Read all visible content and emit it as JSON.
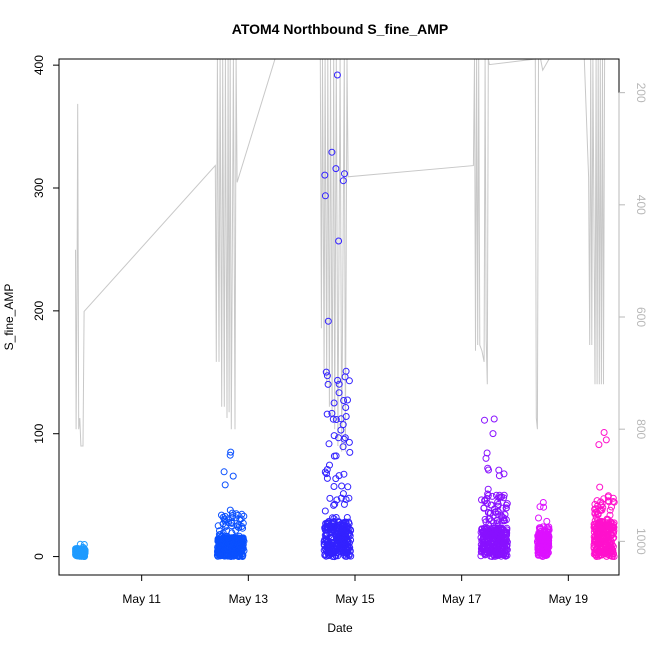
{
  "chart_data": {
    "type": "scatter",
    "title": "ATOM4 Northbound S_fine_AMP",
    "xlabel": "Date",
    "ylabel": "S_fine_AMP",
    "x_ticks": [
      "May 11",
      "May 13",
      "May 15",
      "May 17",
      "May 19"
    ],
    "x_tick_days": [
      11,
      13,
      15,
      17,
      19
    ],
    "xlim_days": [
      9.45,
      19.95
    ],
    "ylim": [
      -15,
      405
    ],
    "y_ticks": [
      0,
      100,
      200,
      300,
      400
    ],
    "y2_ticks": [
      200,
      400,
      600,
      800,
      1000
    ],
    "y2lim_reversed": [
      1060,
      140
    ],
    "grid": false,
    "legend": "none",
    "right_axis_color": "#b8b8b8",
    "line_color": "#c8c8c8",
    "clusters": [
      {
        "day_start": 9.76,
        "day_end": 9.94,
        "color": "#1e9bff",
        "y_max": 10,
        "y_typical": 5
      },
      {
        "day_start": 12.42,
        "day_end": 12.92,
        "color": "#0a50ff",
        "y_max": 85,
        "y_typical": 12
      },
      {
        "day_start": 14.42,
        "day_end": 14.92,
        "color": "#3322ff",
        "y_max": 392,
        "y_typical": 22
      },
      {
        "day_start": 17.36,
        "day_end": 17.86,
        "color": "#8811ff",
        "y_max": 112,
        "y_typical": 18
      },
      {
        "day_start": 18.42,
        "day_end": 18.64,
        "color": "#dd11ff",
        "y_max": 44,
        "y_typical": 14
      },
      {
        "day_start": 19.48,
        "day_end": 19.86,
        "color": "#ff11cc",
        "y_max": 101,
        "y_typical": 22
      }
    ],
    "secondary_line": [
      [
        9.76,
        480
      ],
      [
        9.77,
        800
      ],
      [
        9.79,
        520
      ],
      [
        9.8,
        220
      ],
      [
        9.82,
        800
      ],
      [
        9.84,
        780
      ],
      [
        9.86,
        830
      ],
      [
        9.9,
        830
      ],
      [
        9.92,
        590
      ],
      [
        12.38,
        330
      ],
      [
        12.4,
        680
      ],
      [
        12.42,
        140
      ],
      [
        12.45,
        680
      ],
      [
        12.47,
        140
      ],
      [
        12.5,
        760
      ],
      [
        12.52,
        140
      ],
      [
        12.55,
        760
      ],
      [
        12.57,
        140
      ],
      [
        12.6,
        780
      ],
      [
        12.62,
        140
      ],
      [
        12.64,
        770
      ],
      [
        12.66,
        140
      ],
      [
        12.68,
        800
      ],
      [
        12.72,
        140
      ],
      [
        12.75,
        800
      ],
      [
        12.77,
        140
      ],
      [
        12.79,
        360
      ],
      [
        13.5,
        140
      ],
      [
        14.35,
        140
      ],
      [
        14.37,
        620
      ],
      [
        14.39,
        140
      ],
      [
        14.42,
        700
      ],
      [
        14.44,
        140
      ],
      [
        14.47,
        720
      ],
      [
        14.49,
        140
      ],
      [
        14.52,
        760
      ],
      [
        14.54,
        140
      ],
      [
        14.57,
        780
      ],
      [
        14.6,
        140
      ],
      [
        14.62,
        800
      ],
      [
        14.65,
        140
      ],
      [
        14.68,
        830
      ],
      [
        14.72,
        140
      ],
      [
        14.75,
        840
      ],
      [
        14.8,
        140
      ],
      [
        14.82,
        840
      ],
      [
        14.85,
        140
      ],
      [
        14.87,
        350
      ],
      [
        17.22,
        330
      ],
      [
        17.24,
        140
      ],
      [
        17.26,
        660
      ],
      [
        17.28,
        140
      ],
      [
        17.3,
        650
      ],
      [
        17.32,
        140
      ],
      [
        17.34,
        650
      ],
      [
        17.38,
        660
      ],
      [
        17.42,
        680
      ],
      [
        17.44,
        140
      ],
      [
        17.46,
        640
      ],
      [
        17.48,
        720
      ],
      [
        17.5,
        140
      ],
      [
        17.52,
        150
      ],
      [
        18.38,
        140
      ],
      [
        18.4,
        780
      ],
      [
        18.42,
        800
      ],
      [
        18.44,
        140
      ],
      [
        18.48,
        140
      ],
      [
        18.52,
        160
      ],
      [
        18.64,
        140
      ],
      [
        18.7,
        140
      ],
      [
        19.3,
        140
      ],
      [
        19.38,
        350
      ],
      [
        19.4,
        650
      ],
      [
        19.42,
        140
      ],
      [
        19.44,
        650
      ],
      [
        19.46,
        140
      ],
      [
        19.5,
        720
      ],
      [
        19.52,
        140
      ],
      [
        19.54,
        720
      ],
      [
        19.56,
        140
      ],
      [
        19.58,
        720
      ],
      [
        19.6,
        140
      ],
      [
        19.62,
        720
      ],
      [
        19.64,
        140
      ],
      [
        19.66,
        720
      ],
      [
        19.68,
        140
      ]
    ]
  }
}
